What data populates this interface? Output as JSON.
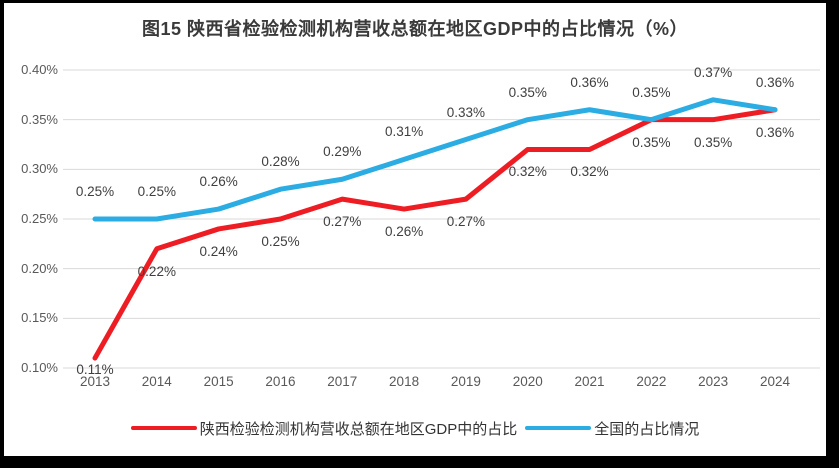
{
  "figure": {
    "title": "图15 陕西省检验检测机构营收总额在地区GDP中的占比情况（%）"
  },
  "chart_data": {
    "type": "line",
    "x": [
      "2013",
      "2014",
      "2015",
      "2016",
      "2017",
      "2018",
      "2019",
      "2020",
      "2021",
      "2022",
      "2023",
      "2024"
    ],
    "series": [
      {
        "key": "shaanxi",
        "name": "陕西检验检测机构营收总额在地区GDP中的占比",
        "color": "#ee1c23",
        "values": [
          0.11,
          0.22,
          0.24,
          0.25,
          0.27,
          0.26,
          0.27,
          0.32,
          0.32,
          0.35,
          0.35,
          0.36
        ],
        "labels": [
          "0.11%",
          "0.22%",
          "0.24%",
          "0.25%",
          "0.27%",
          "0.26%",
          "0.27%",
          "0.32%",
          "0.32%",
          "0.35%",
          "0.35%",
          "0.36%"
        ]
      },
      {
        "key": "national",
        "name": "全国的占比情况",
        "color": "#2bace2",
        "values": [
          0.25,
          0.25,
          0.26,
          0.28,
          0.29,
          0.31,
          0.33,
          0.35,
          0.36,
          0.35,
          0.37,
          0.36
        ],
        "labels": [
          "0.25%",
          "0.25%",
          "0.26%",
          "0.28%",
          "0.29%",
          "0.31%",
          "0.33%",
          "0.35%",
          "0.36%",
          "0.35%",
          "0.37%",
          "0.36%"
        ]
      }
    ],
    "title": "图15 陕西省检验检测机构营收总额在地区GDP中的占比情况（%）",
    "xlabel": "",
    "ylabel": "",
    "ylim": [
      0.1,
      0.4
    ],
    "ytick_values": [
      0.4,
      0.35,
      0.3,
      0.25,
      0.2,
      0.15,
      0.1
    ],
    "ytick_labels": [
      "0.40%",
      "0.35%",
      "0.30%",
      "0.25%",
      "0.20%",
      "0.15%",
      "0.10%"
    ],
    "grid": true,
    "gridline_color": "#d9d9d9",
    "legend_position": "bottom"
  }
}
